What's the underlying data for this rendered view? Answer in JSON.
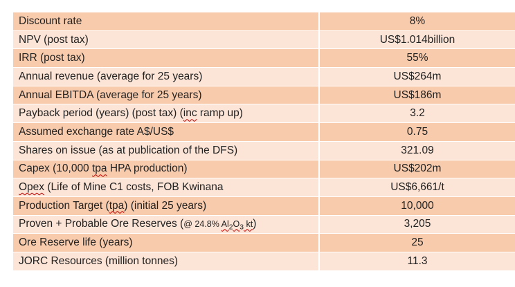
{
  "rows": [
    {
      "label": "Discount rate",
      "value": "8%"
    },
    {
      "label": "NPV (post tax)",
      "value": "US$1.014billion"
    },
    {
      "label": "IRR (post tax)",
      "value": "55%"
    },
    {
      "label": "Annual revenue (average for 25 years)",
      "value": "US$264m"
    },
    {
      "label": "Annual EBITDA (average for 25 years)",
      "value": "US$186m"
    },
    {
      "label_parts": [
        "Payback period (years) (post tax) (",
        "inc",
        " ramp up)"
      ],
      "value": "3.2"
    },
    {
      "label": "Assumed exchange rate A$/US$",
      "value": "0.75"
    },
    {
      "label": "Shares on issue (as at publication of the DFS)",
      "value": "321.09"
    },
    {
      "label_parts": [
        "Capex (10,000 ",
        "tpa",
        " HPA production)"
      ],
      "value": "US$202m"
    },
    {
      "label_parts": [
        "Opex",
        " (Life of Mine C1 costs, FOB Kwinana"
      ],
      "value": "US$6,661/t"
    },
    {
      "label_parts": [
        "Production Target (",
        "tpa",
        ") (initial 25 years)"
      ],
      "value": "10,000"
    },
    {
      "label_parts": [
        "Proven + Probable Ore Reserves (",
        "@ 24.8% ",
        "Al",
        "2",
        "O",
        "3",
        " kt",
        ")"
      ],
      "value": "3,205"
    },
    {
      "label": "Ore Reserve life (years)",
      "value": "25"
    },
    {
      "label": "JORC Resources (million tonnes)",
      "value": "11.3"
    }
  ]
}
